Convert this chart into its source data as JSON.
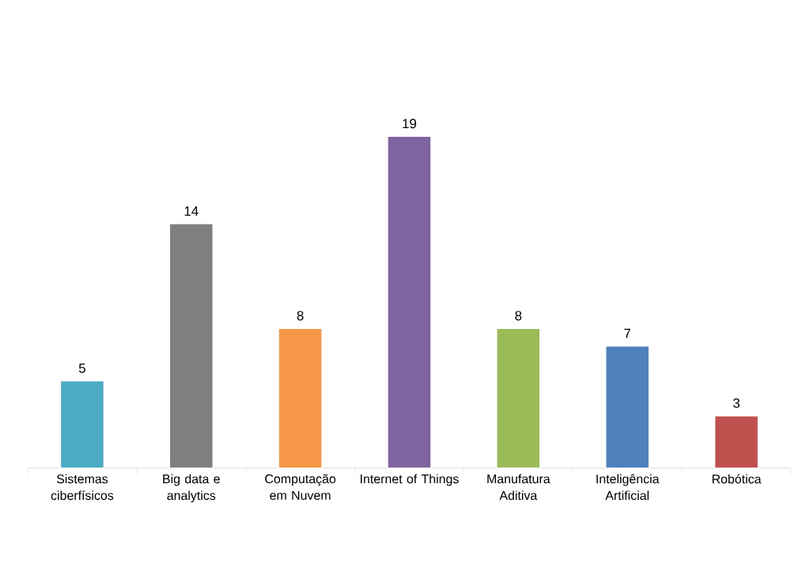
{
  "chart_data": {
    "type": "bar",
    "categories": [
      "Sistemas ciberfísicos",
      "Big data e analytics",
      "Computação em Nuvem",
      "Internet of Things",
      "Manufatura Aditiva",
      "Inteligência Artificial",
      "Robótica"
    ],
    "values": [
      5,
      14,
      8,
      19,
      8,
      7,
      3
    ],
    "colors": [
      "#4bacc6",
      "#7f7f7f",
      "#f79646",
      "#8064a2",
      "#9bbb59",
      "#4f81bd",
      "#c0504d"
    ],
    "data_labels": true
  }
}
